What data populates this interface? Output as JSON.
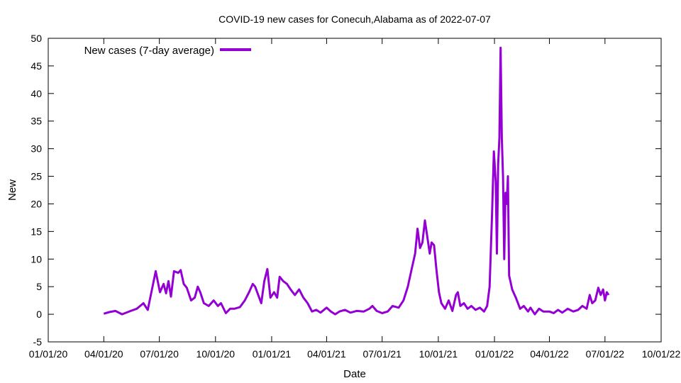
{
  "chart_data": {
    "type": "line",
    "title": "COVID-19 new cases for Conecuh,Alabama as of 2022-07-07",
    "xlabel": "Date",
    "ylabel": "New",
    "ylim": [
      -5,
      50
    ],
    "yticks": [
      -5,
      0,
      5,
      10,
      15,
      20,
      25,
      30,
      35,
      40,
      45,
      50
    ],
    "xlim": [
      "2020-01-01",
      "2022-10-01"
    ],
    "xticks": [
      {
        "date": "2020-01-01",
        "label": "01/01/20"
      },
      {
        "date": "2020-04-01",
        "label": "04/01/20"
      },
      {
        "date": "2020-07-01",
        "label": "07/01/20"
      },
      {
        "date": "2020-10-01",
        "label": "10/01/20"
      },
      {
        "date": "2021-01-01",
        "label": "01/01/21"
      },
      {
        "date": "2021-04-01",
        "label": "04/01/21"
      },
      {
        "date": "2021-07-01",
        "label": "07/01/21"
      },
      {
        "date": "2021-10-01",
        "label": "10/01/21"
      },
      {
        "date": "2022-01-01",
        "label": "01/01/22"
      },
      {
        "date": "2022-04-01",
        "label": "04/01/22"
      },
      {
        "date": "2022-07-01",
        "label": "07/01/22"
      },
      {
        "date": "2022-10-01",
        "label": "10/01/22"
      }
    ],
    "grid": false,
    "legend_position": "top-left",
    "series": [
      {
        "name": "New cases (7-day average)",
        "color": "#9400d3",
        "points": [
          [
            "2020-04-01",
            0.1
          ],
          [
            "2020-04-10",
            0.4
          ],
          [
            "2020-04-20",
            0.6
          ],
          [
            "2020-05-01",
            0.0
          ],
          [
            "2020-05-15",
            0.6
          ],
          [
            "2020-05-25",
            1.0
          ],
          [
            "2020-06-05",
            2.0
          ],
          [
            "2020-06-12",
            0.8
          ],
          [
            "2020-06-18",
            4.0
          ],
          [
            "2020-06-25",
            7.8
          ],
          [
            "2020-07-02",
            4.0
          ],
          [
            "2020-07-08",
            5.5
          ],
          [
            "2020-07-12",
            3.8
          ],
          [
            "2020-07-16",
            6.0
          ],
          [
            "2020-07-20",
            3.2
          ],
          [
            "2020-07-25",
            7.8
          ],
          [
            "2020-08-01",
            7.5
          ],
          [
            "2020-08-05",
            8.0
          ],
          [
            "2020-08-10",
            5.5
          ],
          [
            "2020-08-15",
            4.8
          ],
          [
            "2020-08-22",
            2.5
          ],
          [
            "2020-08-28",
            3.0
          ],
          [
            "2020-09-02",
            5.0
          ],
          [
            "2020-09-06",
            4.0
          ],
          [
            "2020-09-12",
            2.0
          ],
          [
            "2020-09-20",
            1.5
          ],
          [
            "2020-09-28",
            2.5
          ],
          [
            "2020-10-05",
            1.5
          ],
          [
            "2020-10-10",
            2.0
          ],
          [
            "2020-10-18",
            0.2
          ],
          [
            "2020-10-25",
            1.0
          ],
          [
            "2020-11-01",
            1.0
          ],
          [
            "2020-11-10",
            1.3
          ],
          [
            "2020-11-18",
            2.5
          ],
          [
            "2020-11-25",
            4.0
          ],
          [
            "2020-12-01",
            5.5
          ],
          [
            "2020-12-05",
            5.0
          ],
          [
            "2020-12-10",
            3.5
          ],
          [
            "2020-12-15",
            2.0
          ],
          [
            "2020-12-20",
            6.0
          ],
          [
            "2020-12-25",
            8.2
          ],
          [
            "2020-12-30",
            3.0
          ],
          [
            "2021-01-05",
            4.0
          ],
          [
            "2021-01-10",
            3.0
          ],
          [
            "2021-01-14",
            6.8
          ],
          [
            "2021-01-20",
            6.0
          ],
          [
            "2021-01-26",
            5.5
          ],
          [
            "2021-02-01",
            4.5
          ],
          [
            "2021-02-08",
            3.5
          ],
          [
            "2021-02-15",
            4.5
          ],
          [
            "2021-02-22",
            3.0
          ],
          [
            "2021-03-01",
            2.0
          ],
          [
            "2021-03-08",
            0.5
          ],
          [
            "2021-03-15",
            0.8
          ],
          [
            "2021-03-22",
            0.3
          ],
          [
            "2021-04-01",
            1.2
          ],
          [
            "2021-04-08",
            0.5
          ],
          [
            "2021-04-15",
            0.0
          ],
          [
            "2021-04-22",
            0.5
          ],
          [
            "2021-05-01",
            0.8
          ],
          [
            "2021-05-10",
            0.3
          ],
          [
            "2021-05-20",
            0.6
          ],
          [
            "2021-06-01",
            0.5
          ],
          [
            "2021-06-10",
            1.0
          ],
          [
            "2021-06-15",
            1.5
          ],
          [
            "2021-06-22",
            0.6
          ],
          [
            "2021-07-01",
            0.2
          ],
          [
            "2021-07-10",
            0.5
          ],
          [
            "2021-07-18",
            1.5
          ],
          [
            "2021-07-28",
            1.2
          ],
          [
            "2021-08-05",
            2.5
          ],
          [
            "2021-08-12",
            5.0
          ],
          [
            "2021-08-18",
            8.0
          ],
          [
            "2021-08-24",
            11.0
          ],
          [
            "2021-08-28",
            15.5
          ],
          [
            "2021-09-01",
            12.0
          ],
          [
            "2021-09-05",
            13.0
          ],
          [
            "2021-09-09",
            17.0
          ],
          [
            "2021-09-13",
            14.0
          ],
          [
            "2021-09-17",
            11.0
          ],
          [
            "2021-09-20",
            13.0
          ],
          [
            "2021-09-24",
            12.5
          ],
          [
            "2021-09-28",
            8.0
          ],
          [
            "2021-10-02",
            4.0
          ],
          [
            "2021-10-06",
            2.0
          ],
          [
            "2021-10-12",
            1.0
          ],
          [
            "2021-10-18",
            2.5
          ],
          [
            "2021-10-24",
            0.6
          ],
          [
            "2021-10-30",
            3.5
          ],
          [
            "2021-11-02",
            4.0
          ],
          [
            "2021-11-06",
            1.5
          ],
          [
            "2021-11-12",
            2.0
          ],
          [
            "2021-11-18",
            1.0
          ],
          [
            "2021-11-24",
            1.5
          ],
          [
            "2021-12-01",
            0.8
          ],
          [
            "2021-12-08",
            1.2
          ],
          [
            "2021-12-15",
            0.5
          ],
          [
            "2021-12-20",
            1.5
          ],
          [
            "2021-12-24",
            5.0
          ],
          [
            "2021-12-28",
            18.0
          ],
          [
            "2021-12-31",
            29.5
          ],
          [
            "2022-01-03",
            24.0
          ],
          [
            "2022-01-05",
            11.0
          ],
          [
            "2022-01-07",
            27.0
          ],
          [
            "2022-01-09",
            32.0
          ],
          [
            "2022-01-11",
            48.3
          ],
          [
            "2022-01-13",
            32.0
          ],
          [
            "2022-01-15",
            25.0
          ],
          [
            "2022-01-17",
            10.0
          ],
          [
            "2022-01-19",
            22.0
          ],
          [
            "2022-01-21",
            20.0
          ],
          [
            "2022-01-23",
            25.0
          ],
          [
            "2022-01-25",
            7.0
          ],
          [
            "2022-01-30",
            4.5
          ],
          [
            "2022-02-05",
            3.0
          ],
          [
            "2022-02-12",
            1.0
          ],
          [
            "2022-02-18",
            1.5
          ],
          [
            "2022-02-25",
            0.5
          ],
          [
            "2022-03-01",
            1.2
          ],
          [
            "2022-03-08",
            0.0
          ],
          [
            "2022-03-15",
            1.0
          ],
          [
            "2022-03-22",
            0.5
          ],
          [
            "2022-04-01",
            0.5
          ],
          [
            "2022-04-08",
            0.2
          ],
          [
            "2022-04-15",
            0.8
          ],
          [
            "2022-04-22",
            0.3
          ],
          [
            "2022-05-01",
            1.0
          ],
          [
            "2022-05-10",
            0.5
          ],
          [
            "2022-05-18",
            0.8
          ],
          [
            "2022-05-25",
            1.5
          ],
          [
            "2022-06-01",
            1.0
          ],
          [
            "2022-06-06",
            3.5
          ],
          [
            "2022-06-10",
            2.0
          ],
          [
            "2022-06-15",
            2.5
          ],
          [
            "2022-06-20",
            4.8
          ],
          [
            "2022-06-24",
            3.5
          ],
          [
            "2022-06-28",
            4.5
          ],
          [
            "2022-07-01",
            2.5
          ],
          [
            "2022-07-04",
            4.0
          ],
          [
            "2022-07-07",
            3.5
          ]
        ]
      }
    ]
  }
}
